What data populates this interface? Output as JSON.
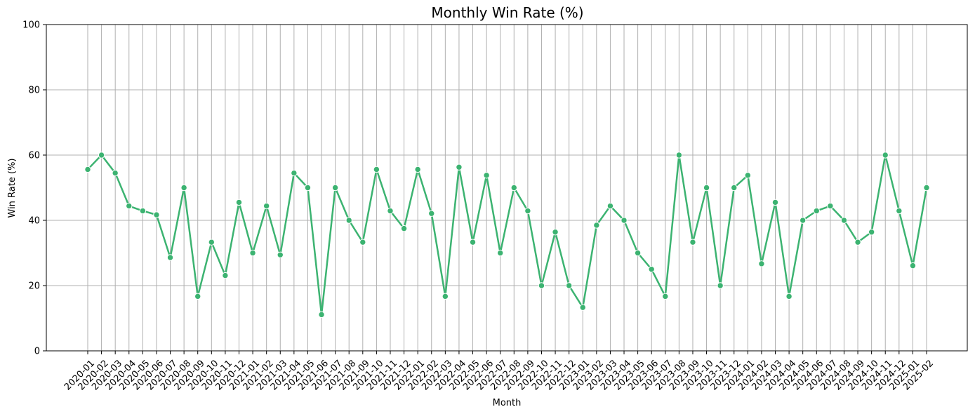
{
  "chart_data": {
    "type": "line",
    "title": "Monthly Win Rate (%)",
    "xlabel": "Month",
    "ylabel": "Win Rate (%)",
    "ylim": [
      0,
      100
    ],
    "yticks": [
      0,
      20,
      40,
      60,
      80,
      100
    ],
    "grid": true,
    "line_color": "#3cb371",
    "categories": [
      "2020-01",
      "2020-02",
      "2020-03",
      "2020-04",
      "2020-05",
      "2020-06",
      "2020-07",
      "2020-08",
      "2020-09",
      "2020-10",
      "2020-11",
      "2020-12",
      "2021-01",
      "2021-02",
      "2021-03",
      "2021-04",
      "2021-05",
      "2021-06",
      "2021-07",
      "2021-08",
      "2021-09",
      "2021-10",
      "2021-11",
      "2021-12",
      "2022-01",
      "2022-02",
      "2022-03",
      "2022-04",
      "2022-05",
      "2022-06",
      "2022-07",
      "2022-08",
      "2022-09",
      "2022-10",
      "2022-11",
      "2022-12",
      "2023-01",
      "2023-02",
      "2023-03",
      "2023-04",
      "2023-05",
      "2023-06",
      "2023-07",
      "2023-08",
      "2023-09",
      "2023-10",
      "2023-11",
      "2023-12",
      "2024-01",
      "2024-02",
      "2024-03",
      "2024-04",
      "2024-05",
      "2024-06",
      "2024-07",
      "2024-08",
      "2024-09",
      "2024-10",
      "2024-11",
      "2024-12",
      "2025-01",
      "2025-02"
    ],
    "values": [
      55.6,
      60.0,
      54.5,
      44.4,
      42.9,
      41.7,
      28.6,
      50.0,
      16.7,
      33.3,
      23.1,
      45.5,
      30.0,
      44.4,
      29.4,
      54.5,
      50.0,
      11.1,
      50.0,
      40.0,
      33.3,
      55.6,
      42.9,
      37.5,
      55.6,
      42.1,
      16.7,
      56.3,
      33.3,
      53.8,
      30.0,
      50.0,
      42.9,
      20.0,
      36.4,
      20.0,
      13.3,
      38.5,
      44.4,
      40.0,
      30.0,
      25.0,
      16.7,
      60.0,
      33.3,
      50.0,
      20.0,
      50.0,
      53.8,
      26.7,
      45.5,
      16.7,
      40.0,
      42.9,
      44.4,
      40.0,
      33.3,
      36.4,
      60.0,
      42.9,
      26.1,
      50.0
    ]
  }
}
